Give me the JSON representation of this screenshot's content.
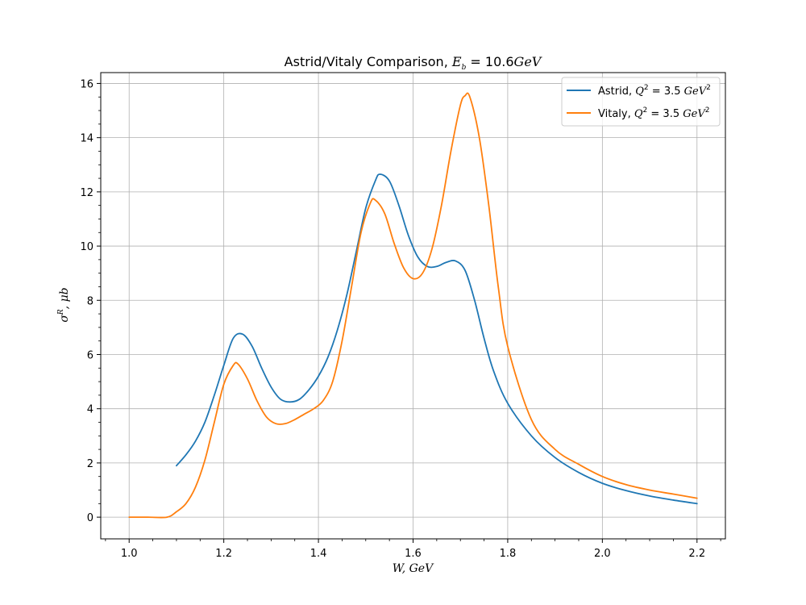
{
  "chart_data": {
    "type": "line",
    "title": "Astrid/Vitaly Comparison, E_b = 10.6 GeV",
    "xlabel": "W, GeV",
    "ylabel": "σ^R, μb",
    "xlim": [
      0.94,
      2.26
    ],
    "ylim": [
      -0.8,
      16.4
    ],
    "xticks": [
      "1.0",
      "1.2",
      "1.4",
      "1.6",
      "1.8",
      "2.0",
      "2.2"
    ],
    "yticks": [
      "0",
      "2",
      "4",
      "6",
      "8",
      "10",
      "12",
      "14",
      "16"
    ],
    "grid": true,
    "legend_position": "top-right",
    "series": [
      {
        "name": "Astrid, Q^2 = 3.5 GeV^2",
        "color": "#1f77b4",
        "points": [
          [
            1.1,
            1.9
          ],
          [
            1.12,
            2.3
          ],
          [
            1.14,
            2.8
          ],
          [
            1.16,
            3.5
          ],
          [
            1.18,
            4.5
          ],
          [
            1.2,
            5.6
          ],
          [
            1.22,
            6.6
          ],
          [
            1.24,
            6.75
          ],
          [
            1.26,
            6.3
          ],
          [
            1.28,
            5.5
          ],
          [
            1.3,
            4.8
          ],
          [
            1.32,
            4.35
          ],
          [
            1.34,
            4.25
          ],
          [
            1.36,
            4.35
          ],
          [
            1.38,
            4.7
          ],
          [
            1.4,
            5.2
          ],
          [
            1.42,
            5.9
          ],
          [
            1.44,
            6.9
          ],
          [
            1.46,
            8.2
          ],
          [
            1.48,
            9.8
          ],
          [
            1.5,
            11.4
          ],
          [
            1.52,
            12.4
          ],
          [
            1.53,
            12.65
          ],
          [
            1.55,
            12.4
          ],
          [
            1.57,
            11.5
          ],
          [
            1.59,
            10.4
          ],
          [
            1.61,
            9.6
          ],
          [
            1.63,
            9.25
          ],
          [
            1.65,
            9.25
          ],
          [
            1.67,
            9.4
          ],
          [
            1.69,
            9.45
          ],
          [
            1.71,
            9.1
          ],
          [
            1.73,
            8.0
          ],
          [
            1.75,
            6.6
          ],
          [
            1.77,
            5.4
          ],
          [
            1.8,
            4.2
          ],
          [
            1.85,
            3.0
          ],
          [
            1.9,
            2.2
          ],
          [
            1.95,
            1.65
          ],
          [
            2.0,
            1.25
          ],
          [
            2.05,
            0.98
          ],
          [
            2.1,
            0.78
          ],
          [
            2.15,
            0.63
          ],
          [
            2.2,
            0.5
          ]
        ]
      },
      {
        "name": "Vitaly, Q^2 = 3.5 GeV^2",
        "color": "#ff7f0e",
        "points": [
          [
            1.0,
            0.0
          ],
          [
            1.04,
            0.0
          ],
          [
            1.08,
            0.0
          ],
          [
            1.1,
            0.2
          ],
          [
            1.12,
            0.5
          ],
          [
            1.14,
            1.1
          ],
          [
            1.16,
            2.1
          ],
          [
            1.18,
            3.5
          ],
          [
            1.2,
            4.9
          ],
          [
            1.22,
            5.6
          ],
          [
            1.23,
            5.65
          ],
          [
            1.25,
            5.1
          ],
          [
            1.27,
            4.3
          ],
          [
            1.29,
            3.7
          ],
          [
            1.31,
            3.45
          ],
          [
            1.33,
            3.45
          ],
          [
            1.35,
            3.6
          ],
          [
            1.37,
            3.8
          ],
          [
            1.39,
            4.0
          ],
          [
            1.41,
            4.3
          ],
          [
            1.43,
            5.0
          ],
          [
            1.45,
            6.5
          ],
          [
            1.47,
            8.5
          ],
          [
            1.49,
            10.5
          ],
          [
            1.51,
            11.6
          ],
          [
            1.52,
            11.7
          ],
          [
            1.54,
            11.2
          ],
          [
            1.56,
            10.1
          ],
          [
            1.58,
            9.2
          ],
          [
            1.6,
            8.8
          ],
          [
            1.62,
            9.0
          ],
          [
            1.64,
            9.9
          ],
          [
            1.66,
            11.5
          ],
          [
            1.68,
            13.5
          ],
          [
            1.7,
            15.2
          ],
          [
            1.71,
            15.55
          ],
          [
            1.72,
            15.5
          ],
          [
            1.74,
            14.0
          ],
          [
            1.76,
            11.5
          ],
          [
            1.78,
            8.5
          ],
          [
            1.8,
            6.3
          ],
          [
            1.85,
            3.6
          ],
          [
            1.9,
            2.5
          ],
          [
            1.95,
            1.95
          ],
          [
            2.0,
            1.5
          ],
          [
            2.05,
            1.2
          ],
          [
            2.1,
            1.0
          ],
          [
            2.15,
            0.85
          ],
          [
            2.2,
            0.7
          ]
        ]
      }
    ]
  }
}
